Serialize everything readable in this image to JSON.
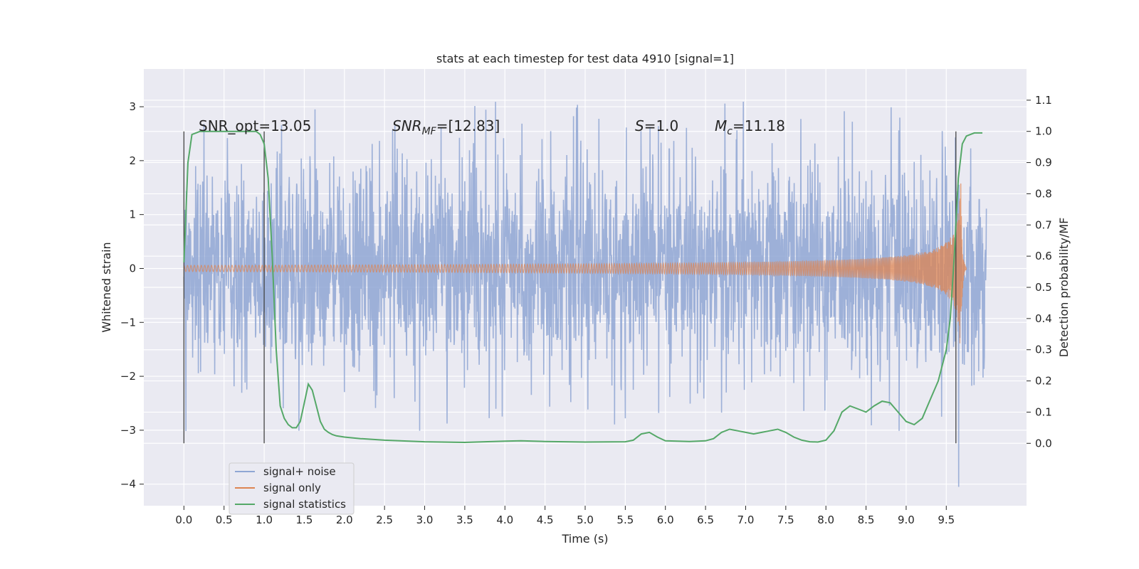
{
  "chart_data": {
    "type": "line",
    "title": "stats at each timestep for test data 4910 [signal=1]",
    "xlabel": "Time (s)",
    "ylabel": "Whitened strain",
    "ylabel_right": "Detection probability/MF",
    "xlim": [
      -0.5,
      10.5
    ],
    "ylim": [
      -4.4,
      3.7
    ],
    "ylim_right": [
      -0.2,
      1.2
    ],
    "x_ticks": [
      "0.0",
      "0.5",
      "1.0",
      "1.5",
      "2.0",
      "2.5",
      "3.0",
      "3.5",
      "4.0",
      "4.5",
      "5.0",
      "5.5",
      "6.0",
      "6.5",
      "7.0",
      "7.5",
      "8.0",
      "8.5",
      "9.0",
      "9.5"
    ],
    "y_ticks": [
      "3",
      "2",
      "1",
      "0",
      "−1",
      "−2",
      "−3",
      "−4"
    ],
    "y_ticks_right": [
      "1.1",
      "1.0",
      "0.9",
      "0.8",
      "0.7",
      "0.6",
      "0.5",
      "0.4",
      "0.3",
      "0.2",
      "0.1",
      "0.0"
    ],
    "grid": true,
    "legend_position": "bottom-left",
    "annotations": {
      "snr_opt": "SNR_opt=13.05",
      "snr_mf_main": "SNR",
      "snr_mf_sub": "MF",
      "snr_mf_value": "=[12.83]",
      "s_main": "S",
      "s_value": "=1.0",
      "mc_main": "M",
      "mc_sub": "c",
      "mc_value": "=11.18"
    },
    "vertical_markers_x": [
      0.0,
      1.0,
      9.62
    ],
    "series": [
      {
        "name": "signal+ noise",
        "color": "#8fa6d4",
        "axis": "left",
        "kind": "noise_band",
        "x_range": [
          0.0,
          10.0
        ],
        "typical_amplitude": 1.3,
        "max": 3.35,
        "min": -4.05
      },
      {
        "name": "signal only",
        "color": "#dd8452",
        "axis": "left",
        "kind": "chirp",
        "x_range": [
          0.0,
          9.75
        ],
        "peak_x": 9.68,
        "peak_amplitude": 1.75
      },
      {
        "name": "signal statistics",
        "color": "#55a868",
        "axis": "right",
        "x": [
          0.0,
          0.05,
          0.1,
          0.15,
          0.2,
          0.3,
          0.5,
          0.7,
          0.9,
          0.95,
          1.0,
          1.05,
          1.1,
          1.15,
          1.2,
          1.25,
          1.3,
          1.35,
          1.4,
          1.45,
          1.5,
          1.55,
          1.6,
          1.65,
          1.7,
          1.75,
          1.8,
          1.85,
          1.9,
          2.0,
          2.2,
          2.5,
          3.0,
          3.5,
          4.0,
          4.2,
          4.5,
          5.0,
          5.5,
          5.6,
          5.7,
          5.8,
          5.9,
          6.0,
          6.3,
          6.5,
          6.6,
          6.7,
          6.8,
          6.9,
          7.0,
          7.1,
          7.2,
          7.3,
          7.4,
          7.5,
          7.6,
          7.7,
          7.8,
          7.9,
          8.0,
          8.1,
          8.2,
          8.3,
          8.4,
          8.5,
          8.6,
          8.7,
          8.8,
          8.9,
          9.0,
          9.1,
          9.2,
          9.3,
          9.4,
          9.5,
          9.55,
          9.6,
          9.65,
          9.7,
          9.75,
          9.8,
          9.85,
          9.9,
          9.95
        ],
        "values": [
          0.58,
          0.9,
          0.99,
          0.995,
          1.0,
          1.0,
          1.0,
          1.0,
          1.0,
          0.99,
          0.96,
          0.85,
          0.6,
          0.3,
          0.12,
          0.08,
          0.06,
          0.05,
          0.05,
          0.07,
          0.13,
          0.19,
          0.17,
          0.12,
          0.07,
          0.045,
          0.035,
          0.028,
          0.024,
          0.02,
          0.015,
          0.01,
          0.005,
          0.003,
          0.007,
          0.008,
          0.006,
          0.004,
          0.005,
          0.01,
          0.03,
          0.035,
          0.02,
          0.008,
          0.006,
          0.008,
          0.015,
          0.035,
          0.045,
          0.04,
          0.035,
          0.03,
          0.035,
          0.04,
          0.045,
          0.035,
          0.02,
          0.01,
          0.005,
          0.004,
          0.01,
          0.04,
          0.1,
          0.12,
          0.11,
          0.1,
          0.12,
          0.135,
          0.13,
          0.1,
          0.07,
          0.06,
          0.08,
          0.14,
          0.2,
          0.3,
          0.4,
          0.6,
          0.85,
          0.96,
          0.985,
          0.99,
          0.995,
          0.995,
          0.995
        ]
      }
    ]
  }
}
